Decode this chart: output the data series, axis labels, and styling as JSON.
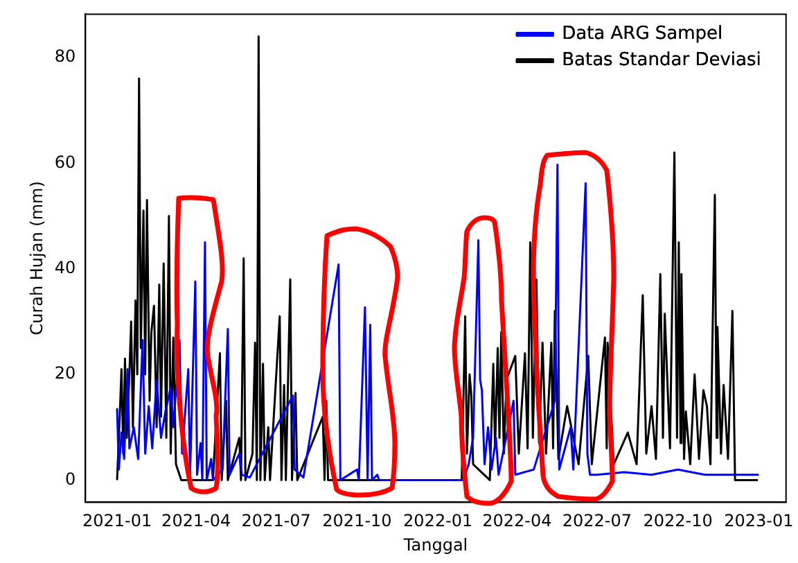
{
  "chart_data": {
    "type": "line",
    "xlabel": "Tanggal",
    "ylabel": "Curah Hujan (mm)",
    "xlim": [
      "2020-11-26",
      "2023-02-01"
    ],
    "ylim": [
      -4.2,
      88.2
    ],
    "xticks": [
      "2021-01",
      "2021-04",
      "2021-07",
      "2021-10",
      "2022-01",
      "2022-04",
      "2022-07",
      "2022-10",
      "2023-01"
    ],
    "yticks": [
      0,
      20,
      40,
      60,
      80
    ],
    "grid": false,
    "legend": "top right",
    "series": [
      {
        "name": "Batas Standar Deviasi",
        "color": "#000000",
        "x": [
          "2021-01-01",
          "2021-01-04",
          "2021-01-06",
          "2021-01-08",
          "2021-01-10",
          "2021-01-12",
          "2021-01-15",
          "2021-01-17",
          "2021-01-19",
          "2021-01-22",
          "2021-01-24",
          "2021-01-26",
          "2021-01-28",
          "2021-01-31",
          "2021-02-02",
          "2021-02-04",
          "2021-02-07",
          "2021-02-09",
          "2021-02-12",
          "2021-02-15",
          "2021-02-18",
          "2021-02-20",
          "2021-02-23",
          "2021-02-26",
          "2021-03-01",
          "2021-03-03",
          "2021-03-06",
          "2021-03-09",
          "2021-03-15",
          "2021-04-20",
          "2021-04-28",
          "2021-04-30",
          "2021-05-05",
          "2021-05-07",
          "2021-05-20",
          "2021-05-22",
          "2021-05-25",
          "2021-05-27",
          "2021-06-04",
          "2021-06-07",
          "2021-06-09",
          "2021-06-11",
          "2021-06-13",
          "2021-06-16",
          "2021-06-18",
          "2021-06-22",
          "2021-06-24",
          "2021-07-05",
          "2021-07-07",
          "2021-07-10",
          "2021-07-12",
          "2021-07-17",
          "2021-07-19",
          "2021-07-23",
          "2021-07-25",
          "2021-08-23",
          "2021-08-25",
          "2021-08-27",
          "2021-08-29",
          "2022-01-28",
          "2022-02-01",
          "2022-02-03",
          "2022-02-06",
          "2022-02-08",
          "2022-02-10",
          "2022-03-01",
          "2022-03-05",
          "2022-03-07",
          "2022-03-10",
          "2022-03-12",
          "2022-03-14",
          "2022-03-17",
          "2022-03-20",
          "2022-03-30",
          "2022-04-03",
          "2022-04-10",
          "2022-04-13",
          "2022-04-16",
          "2022-04-19",
          "2022-04-23",
          "2022-04-26",
          "2022-04-30",
          "2022-05-04",
          "2022-05-10",
          "2022-05-12",
          "2022-05-14",
          "2022-05-18",
          "2022-05-28",
          "2022-06-10",
          "2022-06-21",
          "2022-06-25",
          "2022-07-10",
          "2022-07-12",
          "2022-07-13",
          "2022-07-20",
          "2022-08-05",
          "2022-08-15",
          "2022-08-22",
          "2022-08-26",
          "2022-09-01",
          "2022-09-06",
          "2022-09-11",
          "2022-09-14",
          "2022-09-16",
          "2022-09-22",
          "2022-09-27",
          "2022-09-30",
          "2022-10-02",
          "2022-10-04",
          "2022-10-05",
          "2022-10-08",
          "2022-10-10",
          "2022-10-15",
          "2022-10-20",
          "2022-10-25",
          "2022-10-30",
          "2022-11-03",
          "2022-11-07",
          "2022-11-12",
          "2022-11-14",
          "2022-11-15",
          "2022-11-19",
          "2022-11-22",
          "2022-11-27",
          "2022-12-02",
          "2022-12-05",
          "2022-12-31"
        ],
        "values": [
          0,
          12,
          21,
          5,
          23,
          8,
          20,
          30,
          10,
          34,
          20,
          76,
          25,
          51,
          20,
          53,
          15,
          28,
          33,
          10,
          37,
          12,
          41,
          8,
          50,
          5,
          27,
          3,
          0,
          0,
          24,
          0,
          15,
          0,
          8,
          0,
          42,
          0,
          5,
          26,
          0,
          84,
          0,
          22,
          0,
          10,
          0,
          31,
          0,
          18,
          0,
          38,
          0,
          16.5,
          0,
          12,
          0,
          15,
          0,
          0,
          31,
          5,
          20,
          16,
          3,
          0,
          22,
          6,
          25,
          8,
          28,
          5,
          19,
          23.5,
          5,
          24,
          6,
          45,
          8,
          38,
          7,
          26,
          5,
          26,
          6,
          32,
          4,
          14,
          3,
          23.5,
          3,
          27,
          6,
          26,
          3,
          9,
          3,
          35,
          5,
          14,
          4,
          39,
          8,
          31.5,
          6,
          62,
          8,
          45,
          7,
          39,
          4,
          13,
          3,
          20,
          4,
          17,
          14,
          3,
          54,
          8,
          29,
          5,
          18,
          4,
          32,
          0,
          0
        ]
      },
      {
        "name": "Data ARG Sampel",
        "color": "#0000ff",
        "x": [
          "2021-01-01",
          "2021-01-03",
          "2021-01-06",
          "2021-01-09",
          "2021-01-13",
          "2021-01-15",
          "2021-01-20",
          "2021-01-25",
          "2021-01-30",
          "2021-02-02",
          "2021-02-06",
          "2021-02-10",
          "2021-02-15",
          "2021-02-20",
          "2021-02-25",
          "2021-03-03",
          "2021-03-06",
          "2021-03-13",
          "2021-03-16",
          "2021-03-23",
          "2021-03-25",
          "2021-03-31",
          "2021-04-02",
          "2021-04-06",
          "2021-04-08",
          "2021-04-11",
          "2021-04-13",
          "2021-04-18",
          "2021-04-20",
          "2021-05-01",
          "2021-05-07",
          "2021-05-09",
          "2021-05-20",
          "2021-05-23",
          "2021-06-01",
          "2021-07-20",
          "2021-07-22",
          "2021-08-01",
          "2021-09-10",
          "2021-09-12",
          "2021-10-01",
          "2021-10-03",
          "2021-10-10",
          "2021-10-13",
          "2021-10-16",
          "2021-10-18",
          "2021-10-24",
          "2021-10-26",
          "2022-01-30",
          "2022-02-05",
          "2022-02-10",
          "2022-02-16",
          "2022-02-18",
          "2022-02-20",
          "2022-02-23",
          "2022-02-27",
          "2022-03-03",
          "2022-03-08",
          "2022-03-11",
          "2022-03-28",
          "2022-03-30",
          "2022-04-20",
          "2022-05-14",
          "2022-05-17",
          "2022-05-19",
          "2022-06-01",
          "2022-06-04",
          "2022-06-18",
          "2022-06-20",
          "2022-06-23",
          "2022-07-01",
          "2022-08-01",
          "2022-09-01",
          "2022-10-01",
          "2022-11-01",
          "2022-12-01",
          "2023-01-01"
        ],
        "values": [
          13.6,
          2,
          9,
          4,
          21,
          6,
          10,
          4,
          26.5,
          5,
          14,
          6,
          19,
          8,
          13,
          17.5,
          10,
          26.5,
          5,
          21,
          1,
          37.6,
          1,
          7,
          0,
          45,
          0,
          4,
          0,
          2,
          28.6,
          1,
          5,
          1,
          0.5,
          16,
          2,
          0.5,
          40.8,
          0,
          2,
          0,
          32.7,
          0,
          29.4,
          0,
          1,
          0,
          0,
          3,
          8,
          45.4,
          19,
          17,
          3,
          10,
          2,
          8,
          1,
          15,
          1,
          2,
          15,
          59.7,
          2,
          10,
          2,
          56.2,
          5,
          1,
          1,
          1.5,
          1,
          2,
          1,
          1,
          1
        ]
      }
    ]
  }
}
